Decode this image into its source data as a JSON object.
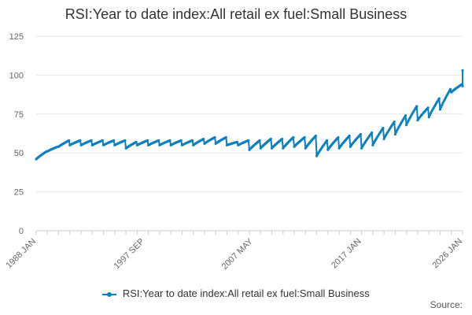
{
  "chart_data": {
    "type": "line",
    "title": "RSI:Year to date index:All retail ex fuel:Small Business",
    "xlabel": "",
    "ylabel": "",
    "ylim": [
      0,
      125
    ],
    "yticks": [
      0,
      25,
      50,
      75,
      100,
      125
    ],
    "x_range": [
      "1988 JAN",
      "2026 JAN"
    ],
    "x_tick_labels": [
      "1988 JAN",
      "1997 SEP",
      "2007 MAY",
      "2017 JAN",
      "2026 JAN"
    ],
    "grid": "horizontal",
    "legend_position": "bottom",
    "series": [
      {
        "name": "RSI:Year to date index:All retail ex fuel:Small Business",
        "color": "#0b7fc0",
        "annual_points": [
          {
            "year": 1988,
            "start": 46,
            "end": 51
          },
          {
            "year": 1989,
            "start": 51,
            "end": 54
          },
          {
            "year": 1990,
            "start": 54,
            "end": 58
          },
          {
            "year": 1991,
            "start": 55,
            "end": 58
          },
          {
            "year": 1992,
            "start": 55,
            "end": 58
          },
          {
            "year": 1993,
            "start": 55,
            "end": 58
          },
          {
            "year": 1994,
            "start": 55,
            "end": 58
          },
          {
            "year": 1995,
            "start": 55,
            "end": 58
          },
          {
            "year": 1996,
            "start": 53,
            "end": 57
          },
          {
            "year": 1997,
            "start": 55,
            "end": 58
          },
          {
            "year": 1998,
            "start": 55,
            "end": 58
          },
          {
            "year": 1999,
            "start": 55,
            "end": 58
          },
          {
            "year": 2000,
            "start": 55,
            "end": 58
          },
          {
            "year": 2001,
            "start": 55,
            "end": 58
          },
          {
            "year": 2002,
            "start": 55,
            "end": 59
          },
          {
            "year": 2003,
            "start": 56,
            "end": 60
          },
          {
            "year": 2004,
            "start": 56,
            "end": 60
          },
          {
            "year": 2005,
            "start": 55,
            "end": 57
          },
          {
            "year": 2006,
            "start": 55,
            "end": 58
          },
          {
            "year": 2007,
            "start": 52,
            "end": 58
          },
          {
            "year": 2008,
            "start": 53,
            "end": 59
          },
          {
            "year": 2009,
            "start": 53,
            "end": 59
          },
          {
            "year": 2010,
            "start": 53,
            "end": 60
          },
          {
            "year": 2011,
            "start": 54,
            "end": 60
          },
          {
            "year": 2012,
            "start": 53,
            "end": 61
          },
          {
            "year": 2013,
            "start": 48,
            "end": 58
          },
          {
            "year": 2014,
            "start": 52,
            "end": 60
          },
          {
            "year": 2015,
            "start": 53,
            "end": 61
          },
          {
            "year": 2016,
            "start": 54,
            "end": 62
          },
          {
            "year": 2017,
            "start": 53,
            "end": 63
          },
          {
            "year": 2018,
            "start": 55,
            "end": 66
          },
          {
            "year": 2019,
            "start": 59,
            "end": 70
          },
          {
            "year": 2020,
            "start": 62,
            "end": 74
          },
          {
            "year": 2021,
            "start": 68,
            "end": 80
          },
          {
            "year": 2022,
            "start": 71,
            "end": 79
          },
          {
            "year": 2023,
            "start": 73,
            "end": 85
          },
          {
            "year": 2024,
            "start": 78,
            "end": 91
          },
          {
            "year": 2025,
            "start": 89,
            "end": 94
          },
          {
            "year": 2026,
            "start": 93,
            "end": 100
          }
        ],
        "end_point": {
          "date": "2026 JAN",
          "value": 103
        }
      }
    ]
  },
  "legend": {
    "label": "RSI:Year to date index:All retail ex fuel:Small Business"
  },
  "source": {
    "label": "Source:"
  }
}
